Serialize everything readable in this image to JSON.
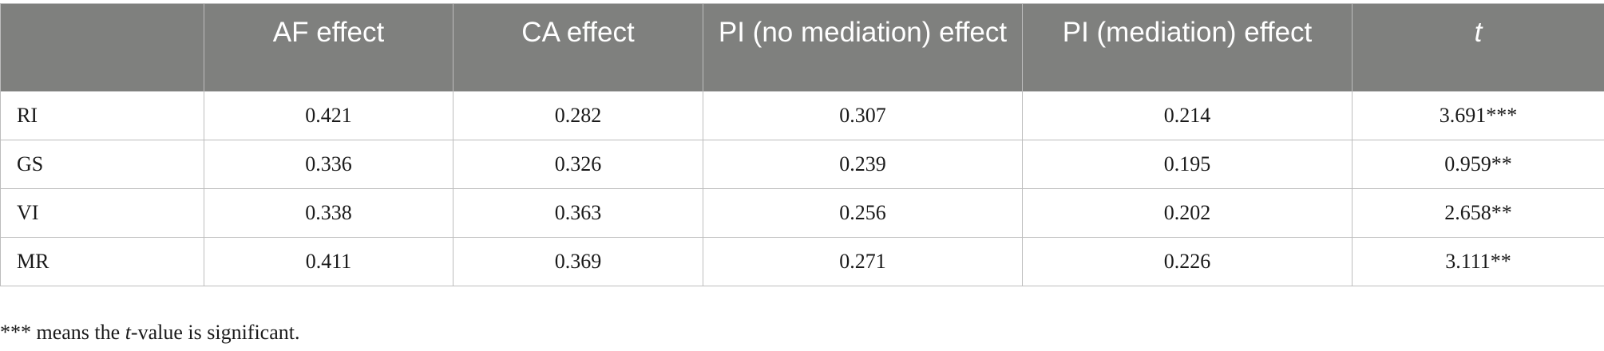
{
  "table": {
    "headers": [
      "",
      "AF effect",
      "CA effect",
      "PI (no mediation) effect",
      "PI (mediation) effect",
      "t"
    ],
    "rows": [
      [
        "RI",
        "0.421",
        "0.282",
        "0.307",
        "0.214",
        "3.691***"
      ],
      [
        "GS",
        "0.336",
        "0.326",
        "0.239",
        "0.195",
        "0.959**"
      ],
      [
        "VI",
        "0.338",
        "0.363",
        "0.256",
        "0.202",
        "2.658**"
      ],
      [
        "MR",
        "0.411",
        "0.369",
        "0.271",
        "0.226",
        "3.111**"
      ]
    ]
  },
  "footnote": {
    "prefix": "*** means the ",
    "italic": "t",
    "suffix": "-value is significant."
  }
}
